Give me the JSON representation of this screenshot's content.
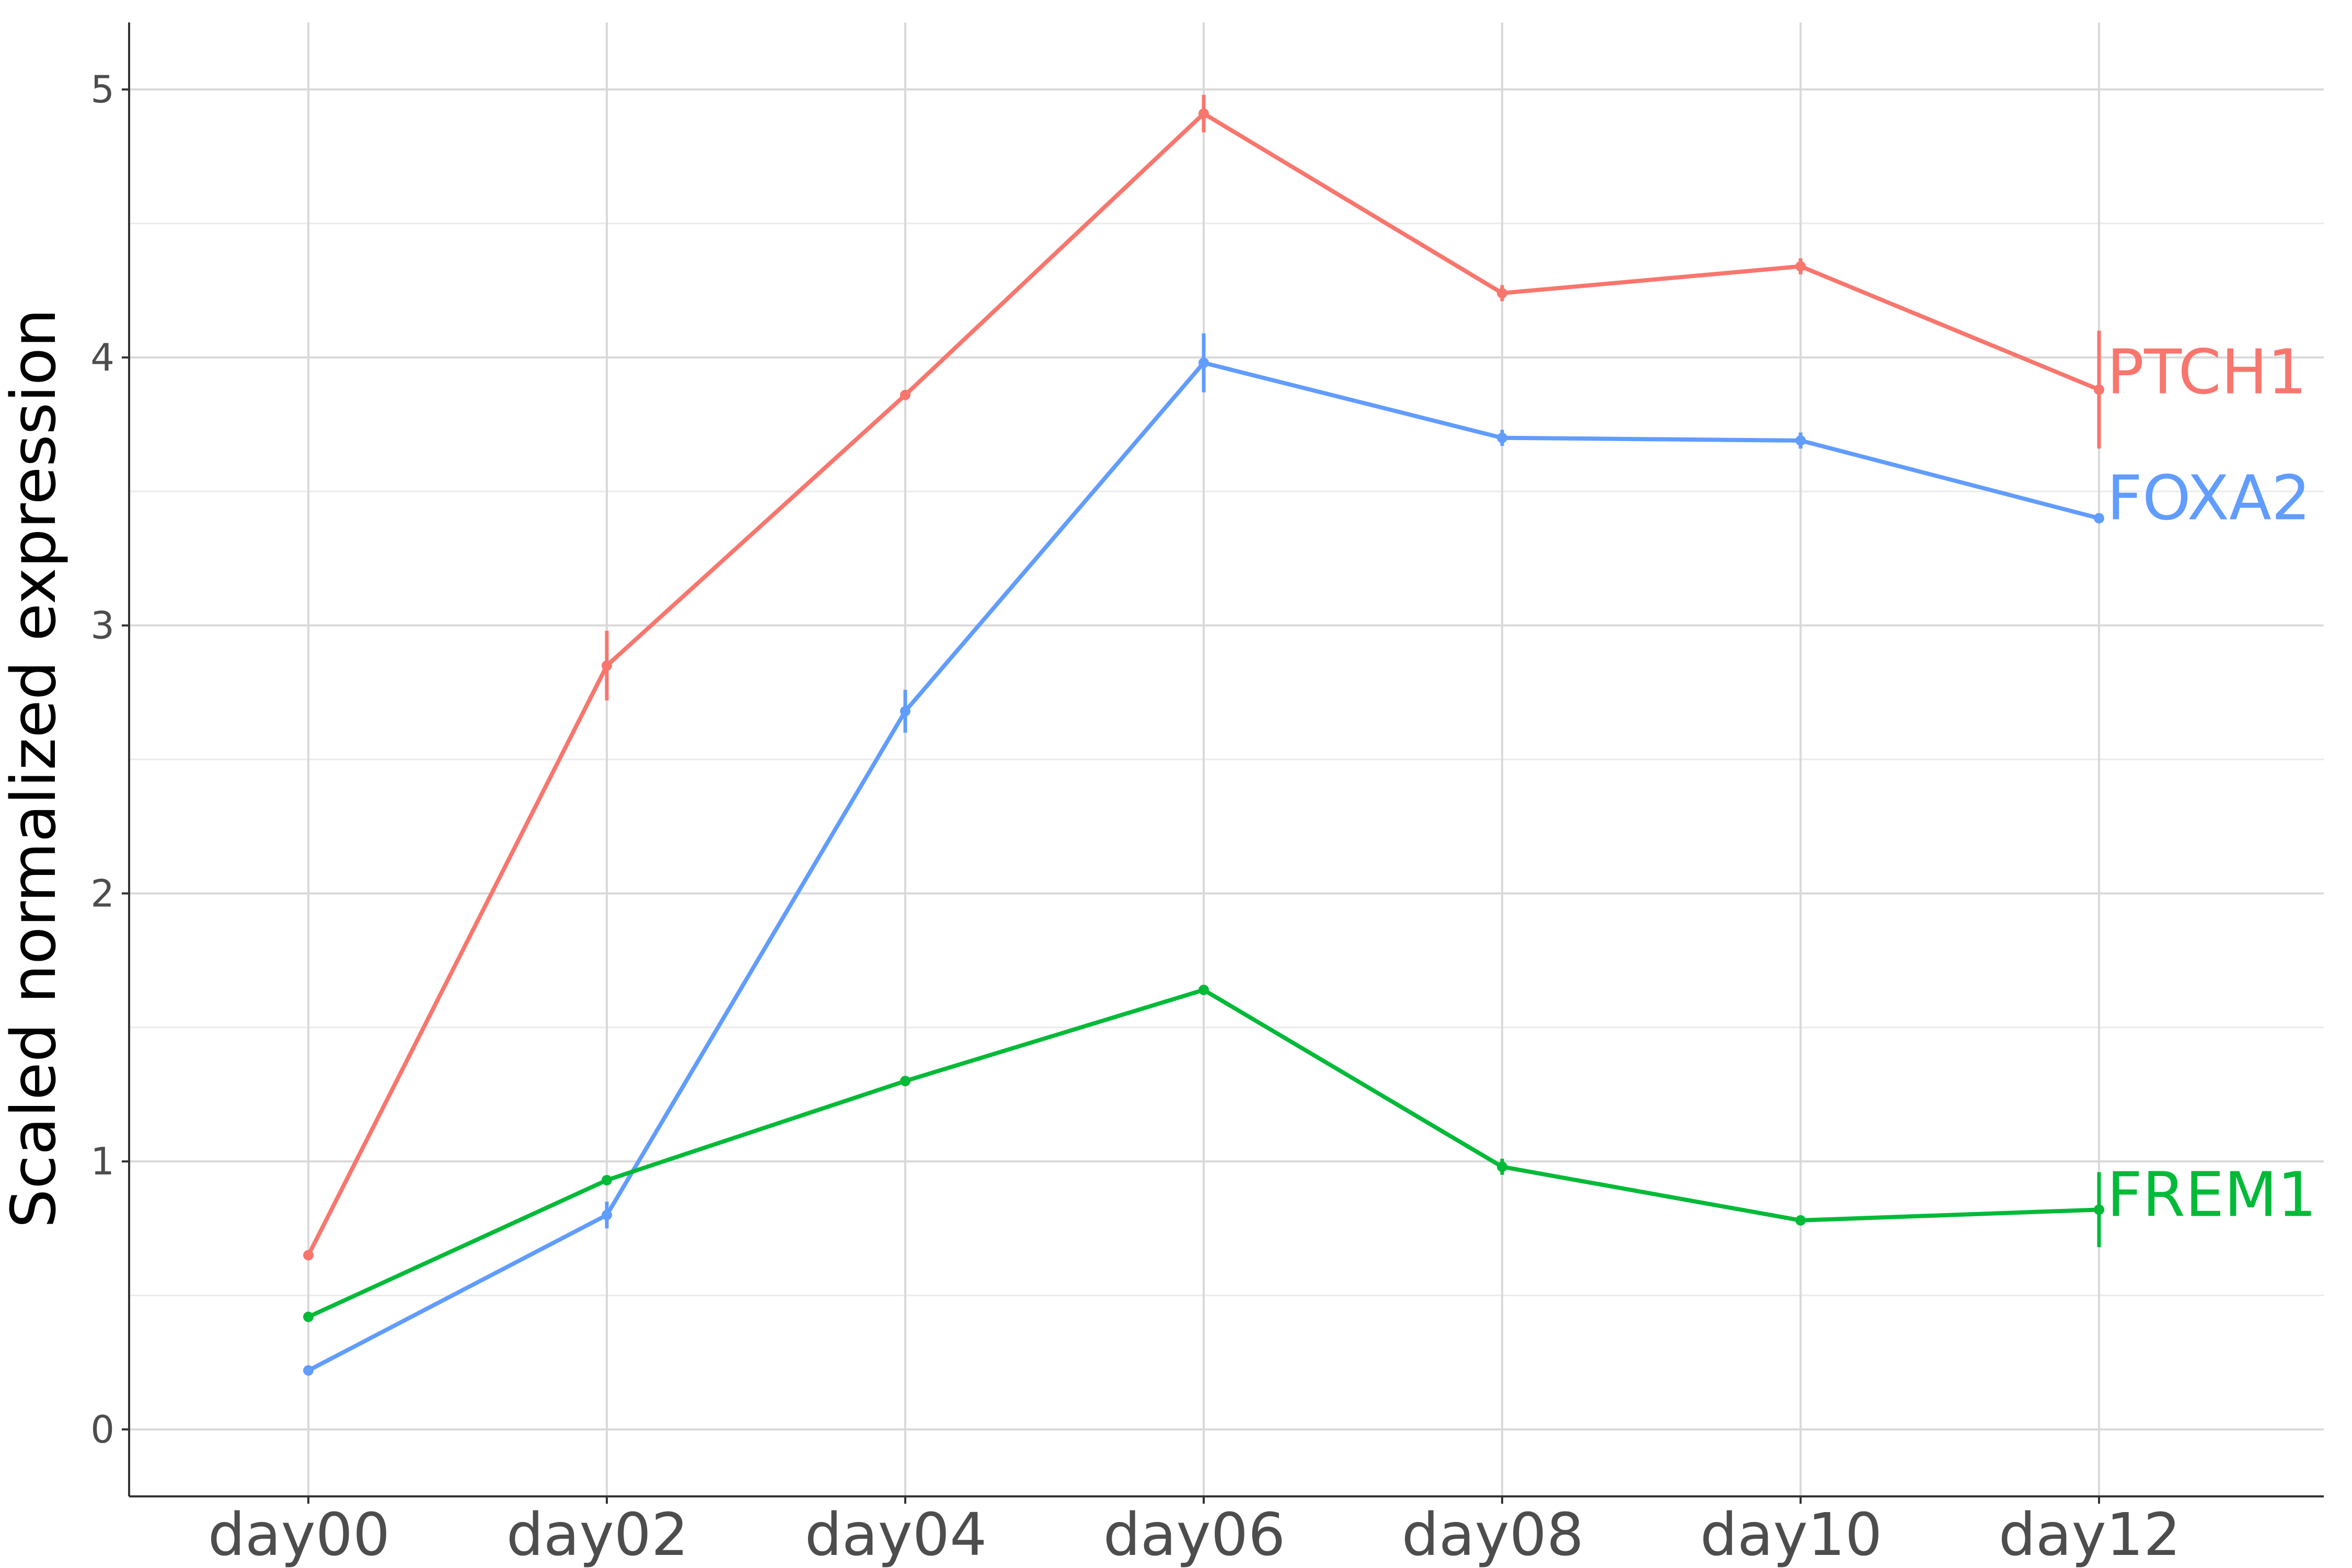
{
  "chart_data": {
    "type": "line",
    "title": "",
    "xlabel": "",
    "ylabel": "Scaled normalized expression",
    "categories": [
      "day00",
      "day02",
      "day04",
      "day06",
      "day08",
      "day10",
      "day12"
    ],
    "ylim": [
      -0.25,
      5.25
    ],
    "yticks": [
      0,
      1,
      2,
      3,
      4,
      5
    ],
    "grid": true,
    "legend": "direct labels at right end of each line",
    "series": [
      {
        "name": "PTCH1",
        "color": "#F8766D",
        "values": [
          0.65,
          2.85,
          3.86,
          4.91,
          4.24,
          4.34,
          3.88
        ],
        "error": [
          0.0,
          0.13,
          0.0,
          0.07,
          0.03,
          0.03,
          0.22
        ]
      },
      {
        "name": "FOXA2",
        "color": "#619CFF",
        "values": [
          0.22,
          0.8,
          2.68,
          3.98,
          3.7,
          3.69,
          3.4
        ],
        "error": [
          0.0,
          0.05,
          0.08,
          0.11,
          0.03,
          0.03,
          0.0
        ]
      },
      {
        "name": "FREM1",
        "color": "#00BA38",
        "values": [
          0.42,
          0.93,
          1.3,
          1.64,
          0.98,
          0.78,
          0.82
        ],
        "error": [
          0.0,
          0.0,
          0.0,
          0.0,
          0.03,
          0.0,
          0.14
        ]
      }
    ]
  }
}
